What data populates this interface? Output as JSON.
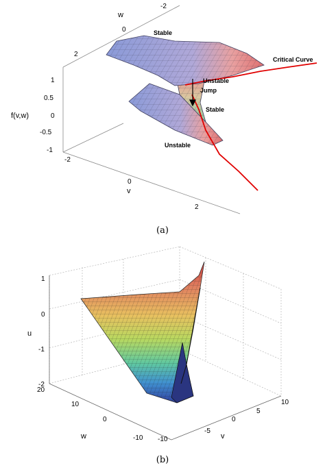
{
  "figure_a": {
    "caption": "(a)",
    "axes": {
      "w_label": "w",
      "f_label": "f(v,w)",
      "v_label": "v",
      "w_ticks": [
        "-2",
        "0",
        "2"
      ],
      "f_ticks": [
        "1",
        "0.5",
        "0",
        "-0.5",
        "-1"
      ],
      "v_ticks": [
        "-2",
        "0",
        "2"
      ]
    },
    "annotations": {
      "stable_top": "Stable",
      "critical_curve": "Critical Curve",
      "unstable_mid": "Unstable",
      "jump": "Jump",
      "stable_mid": "Stable",
      "unstable_bottom": "Unstable"
    },
    "colors": {
      "surface": "#8a9ad8",
      "surface_warm": "#e8a0a0",
      "critical_curve": "#e00000"
    }
  },
  "figure_b": {
    "caption": "(b)",
    "axes": {
      "u_label": "u",
      "w_label": "w",
      "v_label": "v",
      "u_ticks": [
        "1",
        "0",
        "-1",
        "-2"
      ],
      "w_ticks": [
        "20",
        "10",
        "0",
        "-10"
      ],
      "v_ticks": [
        "-10",
        "-5",
        "0",
        "5",
        "10"
      ]
    },
    "colormap": [
      "#d04040",
      "#e08060",
      "#e8c060",
      "#b8d860",
      "#60c8a0",
      "#4090d0",
      "#3040a0"
    ]
  }
}
